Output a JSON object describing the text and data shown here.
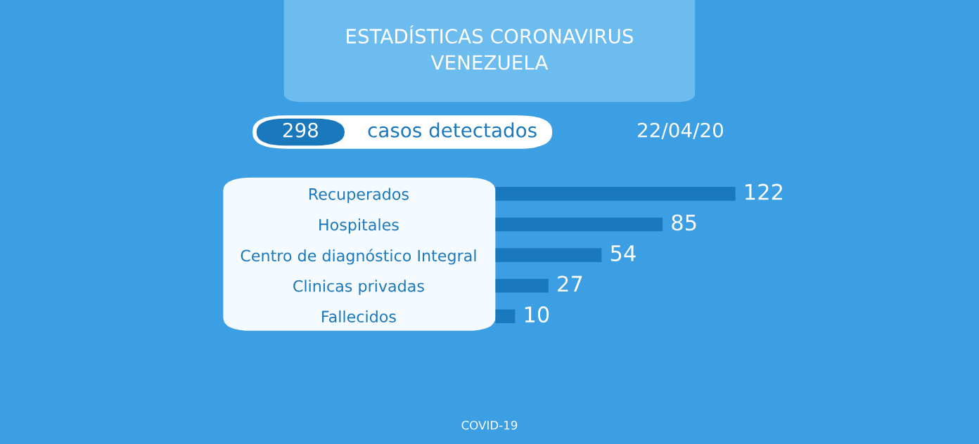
{
  "chart_data": {
    "type": "bar",
    "orientation": "horizontal",
    "title": "ESTADÍSTICAS CORONAVIRUS\nVENEZUELA",
    "categories": [
      "Recuperados",
      "Hospitales",
      "Centro de diagnóstico Integral",
      "Clinicas privadas",
      "Fallecidos"
    ],
    "values": [
      122,
      85,
      54,
      27,
      10
    ],
    "color": "#1a78bd",
    "data_labels": true,
    "grid": false,
    "annotations": [
      "298",
      "casos detectados",
      "22/04/20",
      "COVID-19"
    ]
  }
}
